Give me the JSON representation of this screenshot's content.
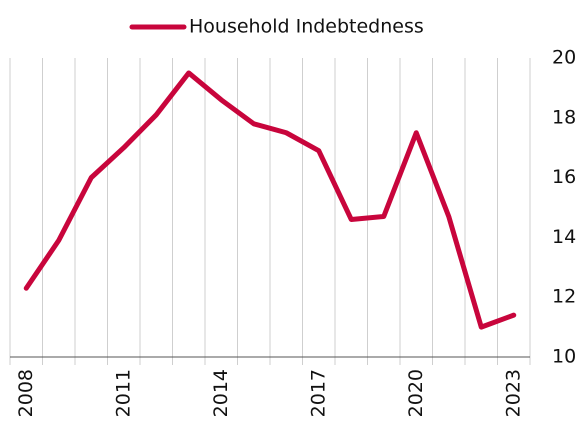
{
  "chart_data": {
    "type": "line",
    "categories": [
      "2008",
      null,
      null,
      "2011",
      null,
      null,
      "2014",
      null,
      null,
      "2017",
      null,
      null,
      "2020",
      null,
      null,
      "2023"
    ],
    "series": [
      {
        "name": "Household Indebtedness",
        "color": "#c8053c",
        "values": [
          12.3,
          13.9,
          16.0,
          17.0,
          18.1,
          19.5,
          18.6,
          17.8,
          17.5,
          16.9,
          14.6,
          14.7,
          17.5,
          14.7,
          11.0,
          11.4
        ]
      }
    ],
    "ylim": [
      10,
      20
    ],
    "yticks": [
      10,
      12,
      14,
      16,
      18,
      20
    ],
    "grid": true,
    "legend": "top"
  }
}
